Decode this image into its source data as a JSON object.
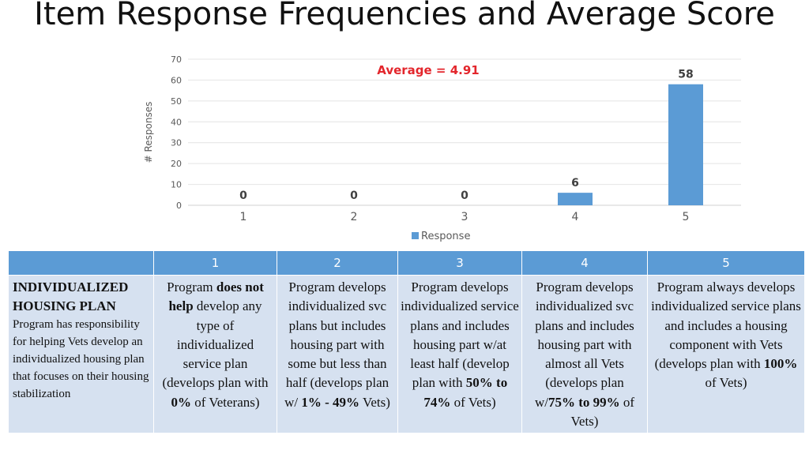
{
  "slide": {
    "title": "Item Response Frequencies and Average Score",
    "average_label": "Average = 4.91"
  },
  "colors": {
    "bar": "#5b9bd5",
    "header": "#5b9bd5",
    "cell": "#d6e1f0",
    "average": "#e3262c"
  },
  "chart_data": {
    "type": "bar",
    "title": "",
    "categories": [
      "1",
      "2",
      "3",
      "4",
      "5"
    ],
    "series": [
      {
        "name": "Response",
        "values": [
          0,
          0,
          0,
          6,
          58
        ]
      }
    ],
    "data_labels": [
      "0",
      "0",
      "0",
      "6",
      "58"
    ],
    "xlabel": "",
    "ylabel": "# Responses",
    "ylim": [
      0,
      70
    ],
    "yticks": [
      0,
      10,
      20,
      30,
      40,
      50,
      60,
      70
    ],
    "grid": true,
    "legend": "bottom"
  },
  "rubric": {
    "headers": [
      "1",
      "2",
      "3",
      "4",
      "5"
    ],
    "criterion": {
      "title": "INDIVIDUALIZED HOUSING PLAN",
      "description": "Program has responsibility for helping Vets develop an individualized housing plan that focuses on their housing stabilization"
    },
    "levels": [
      {
        "pre": "Program ",
        "bold": "does not help ",
        "post": "develop any type of individualized service plan (develops plan with ",
        "bold2": "0%",
        "post2": " of Veterans)"
      },
      {
        "pre": "Program develops individualized svc plans but includes housing part with some but less than half (develops plan w/ ",
        "bold": "1% - 49%",
        "post": " Vets)"
      },
      {
        "pre": "Program develops individualized service plans and includes housing part w/at least half (develop plan with ",
        "bold": "50% to 74%",
        "post": " of Vets)"
      },
      {
        "pre": "Program develops individualized svc plans and includes housing part with almost all Vets (develops plan w/",
        "bold": "75% to 99%",
        "post": " of Vets)"
      },
      {
        "pre": "Program always develops individualized service plans and includes a housing component with Vets (develops plan with ",
        "bold": "100%",
        "post": " of Vets)"
      }
    ]
  }
}
